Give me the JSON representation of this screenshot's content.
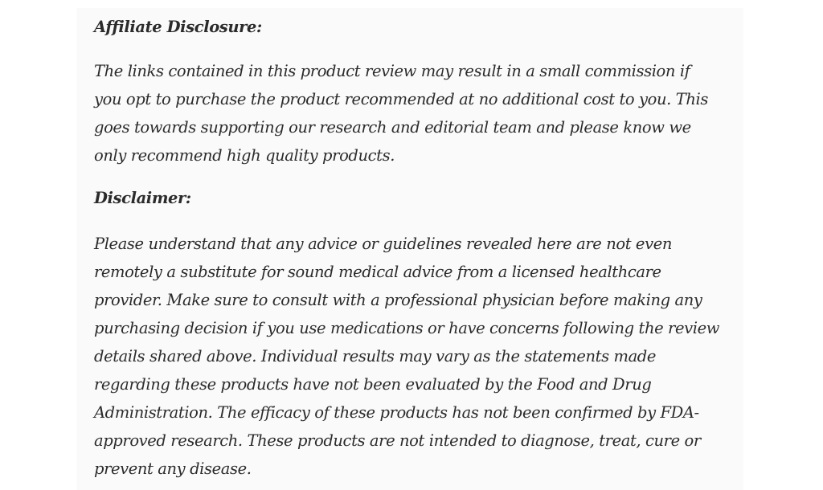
{
  "affiliate": {
    "heading": "Affiliate Disclosure:",
    "lines": [
      "The links contained in this product review may result in a small commission if",
      "you opt to purchase the product recommended at no additional cost to you. This",
      "goes towards supporting our research and editorial team and please know we",
      "only recommend high quality products."
    ]
  },
  "disclaimer": {
    "heading": "Disclaimer:",
    "lines": [
      "Please understand that any advice or guidelines revealed here are not even",
      "remotely a substitute for sound medical advice from a licensed healthcare",
      "provider. Make sure to consult with a professional physician before making any",
      "purchasing decision if you use medications or have concerns following the review",
      "details shared above. Individual results may vary as the statements made",
      "regarding these products have not been evaluated by the Food and Drug",
      "Administration. The efficacy of these products has not been confirmed by FDA-",
      "approved research. These products are not intended to diagnose, treat, cure or",
      "prevent any disease."
    ]
  }
}
